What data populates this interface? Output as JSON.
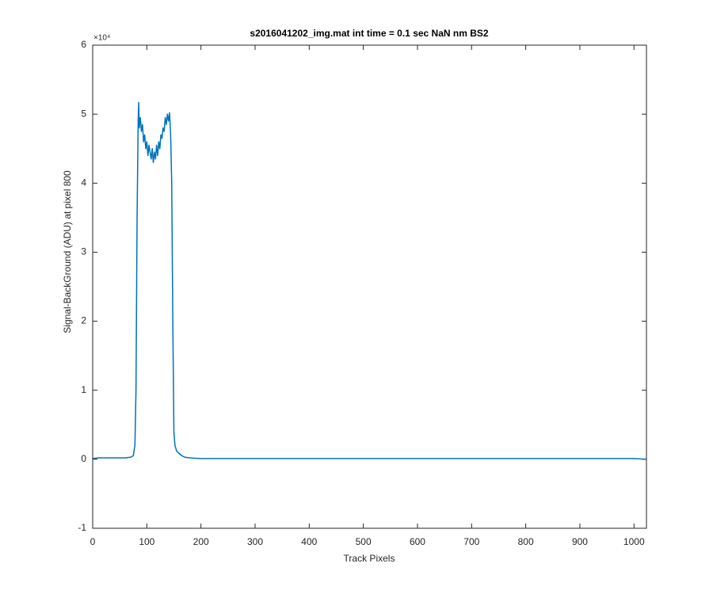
{
  "chart_data": {
    "type": "line",
    "title": "s2016041202_img.mat int time = 0.1 sec  NaN nm BS2",
    "x_label": "Track Pixels",
    "y_label": "Signal-BackGround (ADU) at pixel 800",
    "y_multiplier": "×10⁴",
    "color": "#0072bd",
    "x": [
      0,
      10,
      20,
      30,
      40,
      50,
      60,
      70,
      75,
      78,
      80,
      82,
      84,
      85,
      86,
      88,
      90,
      92,
      94,
      96,
      98,
      100,
      102,
      104,
      106,
      108,
      110,
      112,
      114,
      116,
      118,
      120,
      122,
      124,
      126,
      128,
      130,
      132,
      134,
      136,
      138,
      140,
      142,
      144,
      146,
      148,
      150,
      152,
      155,
      160,
      165,
      170,
      180,
      200,
      250,
      300,
      350,
      400,
      450,
      500,
      550,
      600,
      650,
      700,
      750,
      800,
      850,
      900,
      950,
      1000,
      1023
    ],
    "values": [
      0.01,
      0.02,
      0.02,
      0.02,
      0.02,
      0.02,
      0.02,
      0.03,
      0.05,
      0.2,
      1.0,
      3.5,
      4.9,
      5.17,
      4.8,
      4.95,
      4.75,
      4.85,
      4.6,
      4.7,
      4.5,
      4.6,
      4.4,
      4.55,
      4.45,
      4.35,
      4.5,
      4.3,
      4.45,
      4.35,
      4.55,
      4.4,
      4.6,
      4.5,
      4.7,
      4.65,
      4.8,
      4.75,
      4.95,
      4.85,
      5.0,
      4.9,
      5.02,
      4.7,
      4.0,
      2.0,
      0.4,
      0.2,
      0.12,
      0.08,
      0.05,
      0.03,
      0.02,
      0.01,
      0.01,
      0.01,
      0.01,
      0.01,
      0.01,
      0.01,
      0.01,
      0.01,
      0.01,
      0.01,
      0.01,
      0.01,
      0.01,
      0.01,
      0.01,
      0.01,
      0.0
    ],
    "xlim": [
      0,
      1023
    ],
    "xticks": [
      0,
      100,
      200,
      300,
      400,
      500,
      600,
      700,
      800,
      900,
      1000
    ],
    "ylim": [
      -1,
      6
    ],
    "yticks": [
      -1,
      0,
      1,
      2,
      3,
      4,
      5,
      6
    ],
    "grid": false
  }
}
